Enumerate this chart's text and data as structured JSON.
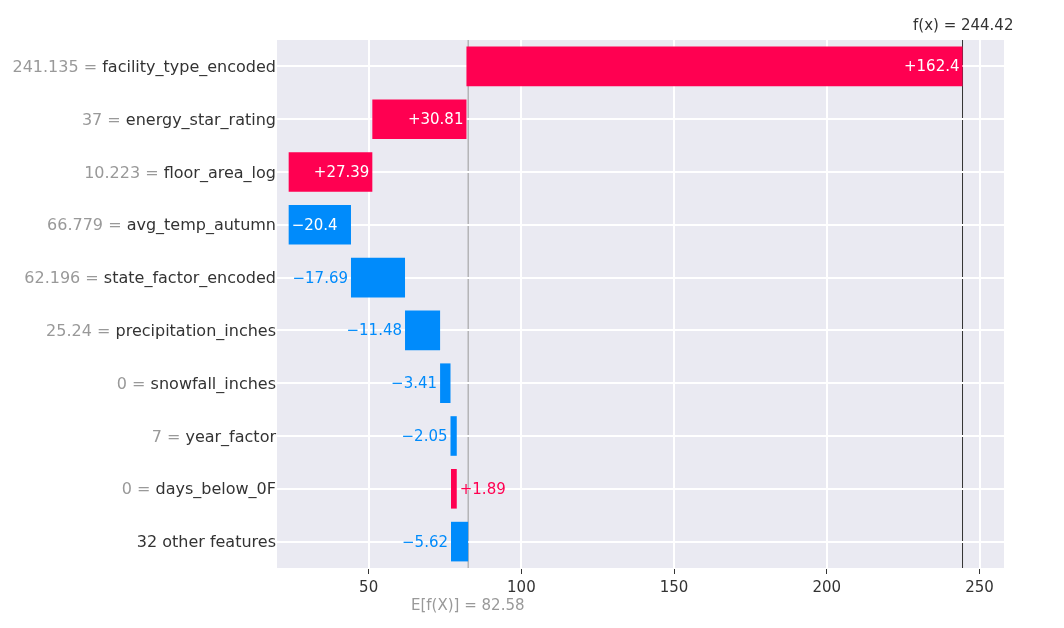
{
  "chart_data": {
    "type": "bar",
    "orientation": "horizontal",
    "categories": [
      "241.135 = facility_type_encoded",
      "37 = energy_star_rating",
      "10.223 = floor_area_log",
      "66.779 = avg_temp_autumn",
      "62.196 = state_factor_encoded",
      "25.24 = precipitation_inches",
      "0 = snowfall_inches",
      "7 = year_factor",
      "0 = days_below_0F",
      "32 other features"
    ],
    "values": [
      162.4,
      30.81,
      27.39,
      -20.4,
      -17.69,
      -11.48,
      -3.41,
      -2.05,
      1.89,
      -5.62
    ],
    "base": [
      82.02,
      51.21,
      23.82,
      44.22,
      61.91,
      73.39,
      76.8,
      78.85,
      76.96,
      82.58
    ],
    "colors": [
      "#ff0051",
      "#ff0051",
      "#ff0051",
      "#008bfb",
      "#008bfb",
      "#008bfb",
      "#008bfb",
      "#008bfb",
      "#ff0051",
      "#008bfb"
    ],
    "value_labels": [
      "+162.4",
      "+30.81",
      "+27.39",
      "−20.4",
      "−17.69",
      "−11.48",
      "−3.41",
      "−2.05",
      "+1.89",
      "−5.62"
    ],
    "xlim": [
      20,
      258
    ],
    "xticks": [
      50,
      100,
      150,
      200,
      250
    ],
    "ref_lines": [
      {
        "axis": "x",
        "value": 82.58,
        "label": "E[f(X)] = 82.58",
        "color": "#999999"
      },
      {
        "axis": "x",
        "value": 244.42,
        "label": "f(x) = 244.42",
        "color": "#333333"
      }
    ],
    "grid": true
  }
}
